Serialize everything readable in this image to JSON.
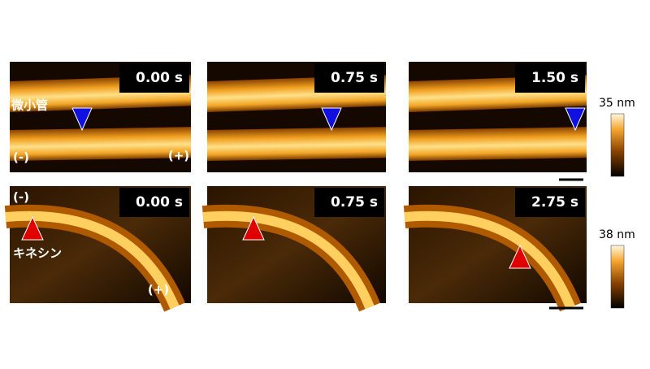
{
  "rows": [
    {
      "colorbar_label": "35 nm",
      "panels": [
        {
          "time": "0.00 s",
          "labels": [
            "微小管",
            "(-)",
            "(+)"
          ]
        },
        {
          "time": "0.75 s"
        },
        {
          "time": "1.50 s"
        }
      ]
    },
    {
      "colorbar_label": "38 nm",
      "panels": [
        {
          "time": "0.00 s",
          "labels": [
            "(-)",
            "キネシン",
            "(+)"
          ]
        },
        {
          "time": "0.75 s"
        },
        {
          "time": "2.75 s"
        }
      ]
    }
  ]
}
